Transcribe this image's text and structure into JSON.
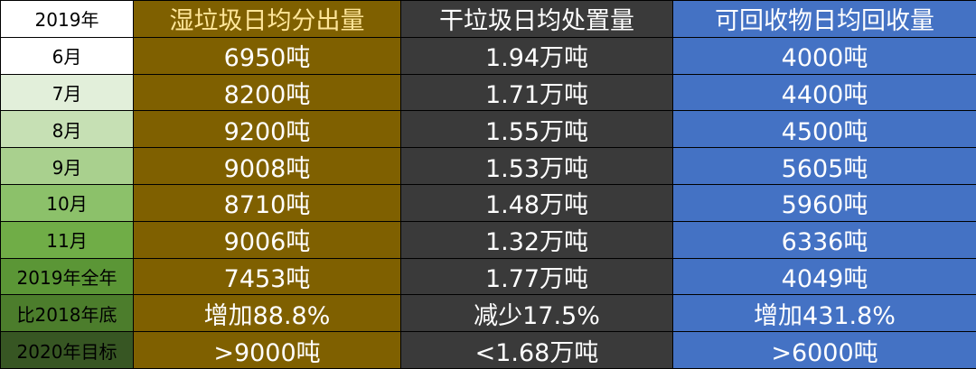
{
  "table": {
    "header": [
      "2019年",
      "湿垃圾日均分出量",
      "干垃圾日均处置量",
      "可回收物日均回收量"
    ],
    "rows": [
      [
        "6月",
        "6950吨",
        "1.94万吨",
        "4000吨"
      ],
      [
        "7月",
        "8200吨",
        "1.71万吨",
        "4400吨"
      ],
      [
        "8月",
        "9200吨",
        "1.55万吨",
        "4500吨"
      ],
      [
        "9月",
        "9008吨",
        "1.53万吨",
        "5605吨"
      ],
      [
        "10月",
        "8710吨",
        "1.48万吨",
        "5960吨"
      ],
      [
        "11月",
        "9006吨",
        "1.32万吨",
        "6336吨"
      ],
      [
        "2019年全年",
        "7453吨",
        "1.77万吨",
        "4049吨"
      ],
      [
        "比2018年底",
        "增加88.8%",
        "减少17.5%",
        "增加431.8%"
      ],
      [
        "2020年目标",
        ">9000吨",
        "<1.68万吨",
        ">6000吨"
      ]
    ]
  }
}
